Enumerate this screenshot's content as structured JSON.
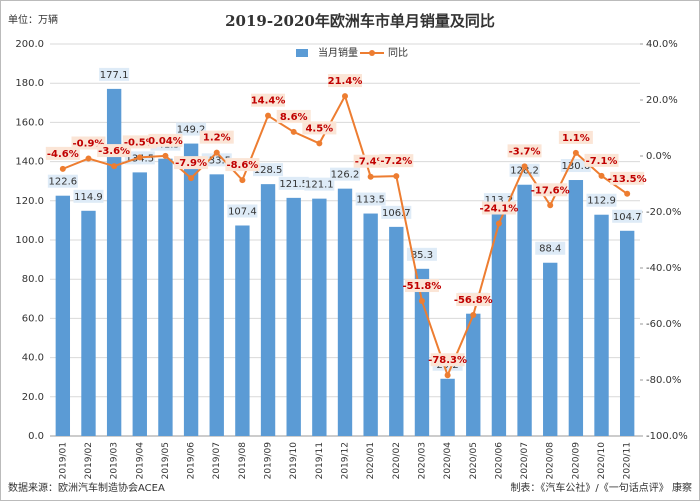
{
  "chart_data": {
    "type": "bar-line",
    "title": "2019-2020年欧洲车市单月销量及同比",
    "y_label": "单位：万辆",
    "source": "数据来源：欧洲汽车制造协会ACEA",
    "credit": "制表：《汽车公社》/《一句话点评》 康察",
    "categories": [
      "2019/01",
      "2019/02",
      "2019/03",
      "2019/04",
      "2019/05",
      "2019/06",
      "2019/07",
      "2019/08",
      "2019/09",
      "2019/10",
      "2019/11",
      "2019/12",
      "2020/01",
      "2020/02",
      "2020/03",
      "2020/04",
      "2020/05",
      "2020/06",
      "2020/07",
      "2020/08",
      "2020/09",
      "2020/10",
      "2020/11"
    ],
    "series": [
      {
        "name": "当月销量",
        "color": "#5b9bd5",
        "values": [
          122.6,
          114.9,
          177.1,
          134.5,
          141.5,
          149.2,
          133.5,
          107.4,
          128.5,
          121.5,
          121.1,
          126.2,
          113.5,
          106.7,
          85.3,
          29.2,
          62.4,
          113.2,
          128.2,
          88.4,
          130.6,
          112.9,
          104.7
        ]
      },
      {
        "name": "同比",
        "color": "#ed7d31",
        "axis": "y2",
        "values": [
          -4.6,
          -0.9,
          -3.6,
          -0.5,
          0.04,
          -7.9,
          1.2,
          -8.6,
          14.4,
          8.6,
          4.5,
          21.4,
          -7.4,
          -7.2,
          -51.8,
          -78.3,
          -56.8,
          -24.1,
          -3.7,
          -17.6,
          1.1,
          -7.1,
          -13.5
        ],
        "value_labels": [
          "-4.6%",
          "-0.9%",
          "-3.6%",
          "-0.5%",
          "0.04%",
          "-7.9%",
          "1.2%",
          "-8.6%",
          "14.4%",
          "8.6%",
          "4.5%",
          "21.4%",
          "-7.4%",
          "-7.2%",
          "-51.8%",
          "-78.3%",
          "-56.8%",
          "-24.1%",
          "-3.7%",
          "-17.6%",
          "1.1%",
          "-7.1%",
          "-13.5%"
        ]
      }
    ],
    "ylim": [
      0,
      200
    ],
    "yticks": [
      {
        "value": 0,
        "label": "0.0"
      },
      {
        "value": 20,
        "label": "20.0"
      },
      {
        "value": 40,
        "label": "40.0"
      },
      {
        "value": 60,
        "label": "60.0"
      },
      {
        "value": 80,
        "label": "80.0"
      },
      {
        "value": 100,
        "label": "100.0"
      },
      {
        "value": 120,
        "label": "120.0"
      },
      {
        "value": 140,
        "label": "140.0"
      },
      {
        "value": 160,
        "label": "160.0"
      },
      {
        "value": 180,
        "label": "180.0"
      },
      {
        "value": 200,
        "label": "200.0"
      }
    ],
    "y2lim": [
      -100,
      40
    ],
    "y2ticks": [
      {
        "value": -100,
        "label": "-100.0%"
      },
      {
        "value": -80,
        "label": "-80.0%"
      },
      {
        "value": -60,
        "label": "-60.0%"
      },
      {
        "value": -40,
        "label": "-40.0%"
      },
      {
        "value": -20,
        "label": "-20.0%"
      },
      {
        "value": 0,
        "label": "0.0%"
      },
      {
        "value": 20,
        "label": "20.0%"
      },
      {
        "value": 40,
        "label": "40.0%"
      }
    ],
    "grid": true
  }
}
